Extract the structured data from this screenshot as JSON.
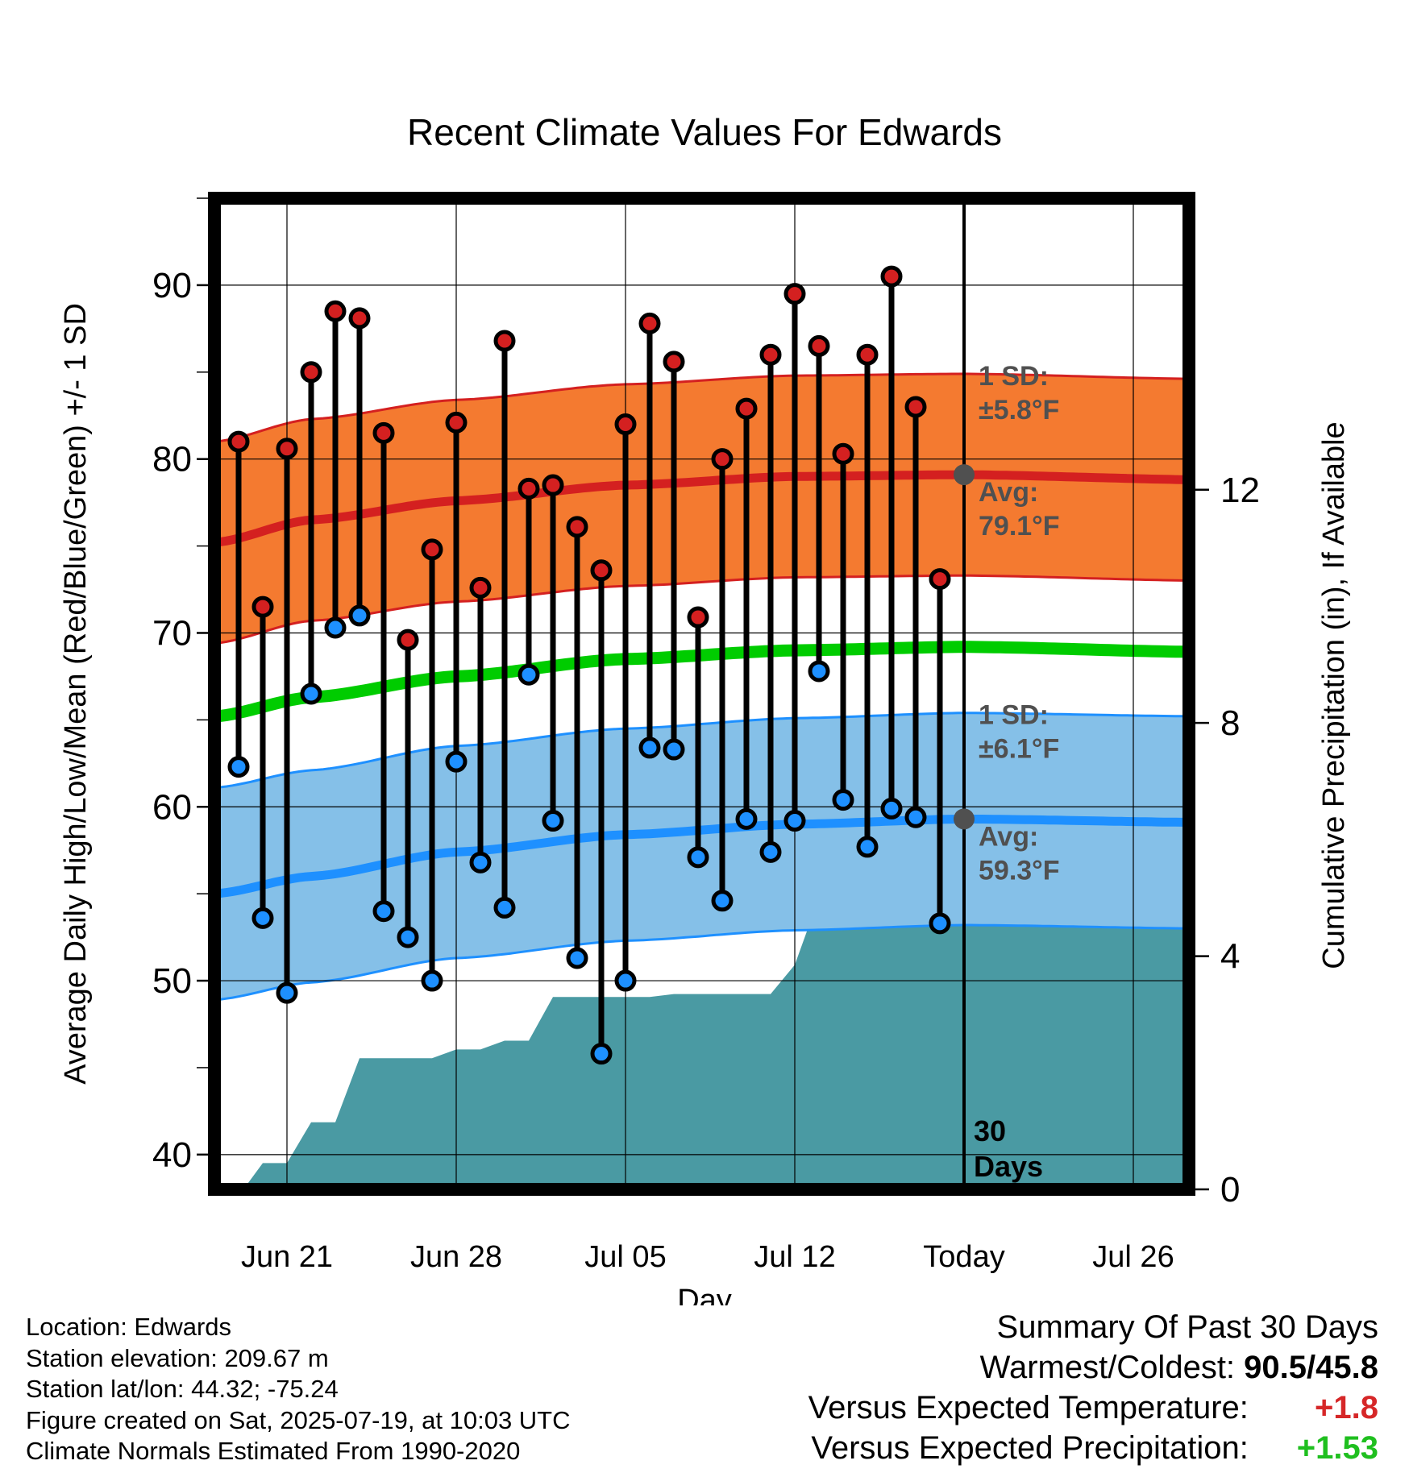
{
  "chart_data": {
    "type": "line",
    "title": "Recent Climate Values For Edwards",
    "xlabel": "Day",
    "ylabel_left": "Average Daily High/Low/Mean (Red/Blue/Green) +/- 1 SD",
    "ylabel_right": "Cumulative Precipitation (in), If Available",
    "ylim_left": [
      38,
      95
    ],
    "ylim_right": [
      0,
      17
    ],
    "yticks_left": [
      40,
      50,
      60,
      70,
      80,
      90
    ],
    "yticks_right": [
      0,
      4,
      8,
      12
    ],
    "x_range_days": [
      0,
      41.1
    ],
    "x_ticks": [
      {
        "day": 3,
        "label": "Jun 21"
      },
      {
        "day": 10,
        "label": "Jun 28"
      },
      {
        "day": 17,
        "label": "Jul 05"
      },
      {
        "day": 24,
        "label": "Jul 12"
      },
      {
        "day": 31,
        "label": "Today"
      },
      {
        "day": 38,
        "label": "Jul 26"
      }
    ],
    "today_day": 31,
    "today_label": "30 Days",
    "daily_high": [
      81.0,
      71.5,
      80.6,
      85.0,
      88.5,
      88.1,
      81.5,
      69.6,
      74.8,
      82.1,
      72.6,
      86.8,
      78.3,
      78.5,
      76.1,
      73.6,
      82.0,
      87.8,
      85.6,
      70.9,
      80.0,
      82.9,
      86.0,
      89.5,
      86.5,
      80.3,
      86.0,
      90.5,
      83.0,
      73.1
    ],
    "daily_low": [
      62.3,
      53.6,
      49.3,
      66.5,
      70.3,
      71.0,
      54.0,
      52.5,
      50.0,
      62.6,
      56.8,
      54.2,
      67.6,
      59.2,
      51.3,
      45.8,
      50.0,
      63.4,
      63.3,
      57.1,
      54.6,
      59.3,
      57.4,
      59.2,
      67.8,
      60.4,
      57.7,
      59.9,
      59.4,
      53.3
    ],
    "normal_high": {
      "mean": [
        {
          "day": 0,
          "value": 75.2
        },
        {
          "day": 4,
          "value": 76.5
        },
        {
          "day": 10,
          "value": 77.6
        },
        {
          "day": 17,
          "value": 78.5
        },
        {
          "day": 24,
          "value": 79.0
        },
        {
          "day": 31,
          "value": 79.1
        },
        {
          "day": 41.1,
          "value": 78.8
        }
      ],
      "sd": 5.8,
      "label_sd": "1 SD:",
      "label_sd_value": "±5.8°F",
      "label_avg": "Avg:",
      "label_avg_value": "79.1°F"
    },
    "normal_low": {
      "mean": [
        {
          "day": 0,
          "value": 55.0
        },
        {
          "day": 4,
          "value": 56.0
        },
        {
          "day": 10,
          "value": 57.4
        },
        {
          "day": 17,
          "value": 58.4
        },
        {
          "day": 24,
          "value": 59.0
        },
        {
          "day": 31,
          "value": 59.3
        },
        {
          "day": 41.1,
          "value": 59.1
        }
      ],
      "sd": 6.1,
      "label_sd": "1 SD:",
      "label_sd_value": "±6.1°F",
      "label_avg": "Avg:",
      "label_avg_value": "59.3°F"
    },
    "normal_mean": [
      {
        "day": 0,
        "value": 65.2
      },
      {
        "day": 4,
        "value": 66.3
      },
      {
        "day": 10,
        "value": 67.5
      },
      {
        "day": 17,
        "value": 68.5
      },
      {
        "day": 24,
        "value": 69.0
      },
      {
        "day": 31,
        "value": 69.2
      },
      {
        "day": 41.1,
        "value": 68.9
      }
    ],
    "cumulative_precip": [
      {
        "day": 1.2,
        "value": 0.0
      },
      {
        "day": 2,
        "value": 0.45
      },
      {
        "day": 3,
        "value": 0.45
      },
      {
        "day": 4,
        "value": 1.15
      },
      {
        "day": 5,
        "value": 1.15
      },
      {
        "day": 6,
        "value": 2.25
      },
      {
        "day": 9,
        "value": 2.25
      },
      {
        "day": 10,
        "value": 2.4
      },
      {
        "day": 11,
        "value": 2.4
      },
      {
        "day": 12,
        "value": 2.55
      },
      {
        "day": 13,
        "value": 2.55
      },
      {
        "day": 14,
        "value": 3.3
      },
      {
        "day": 15,
        "value": 3.3
      },
      {
        "day": 17,
        "value": 3.3
      },
      {
        "day": 18,
        "value": 3.3
      },
      {
        "day": 19,
        "value": 3.35
      },
      {
        "day": 23,
        "value": 3.35
      },
      {
        "day": 24,
        "value": 3.85
      },
      {
        "day": 25,
        "value": 5.0
      },
      {
        "day": 28,
        "value": 5.0
      },
      {
        "day": 29,
        "value": 5.45
      },
      {
        "day": 41.1,
        "value": 5.45
      }
    ],
    "colors": {
      "high_band": "#f47a30",
      "high_line": "#d42020",
      "low_band": "#85c0e8",
      "low_line": "#1e90ff",
      "mean_line": "#00cc00",
      "precip": "#4a9aa3",
      "high_dot": "#d42020",
      "low_dot": "#1e90ff",
      "avg_marker": "#505050"
    }
  },
  "info": {
    "location": "Location: Edwards",
    "elevation": "Station elevation: 209.67 m",
    "latlon": "Station lat/lon: 44.32; -75.24",
    "created": "Figure created on Sat, 2025-07-19, at 10:03 UTC",
    "normals": "Climate Normals Estimated From 1990-2020"
  },
  "summary": {
    "title": "Summary Of Past 30 Days",
    "warmest_label": "Warmest/Coldest:",
    "warmest_value": "90.5/45.8",
    "temp_label": "Versus Expected Temperature:",
    "temp_value": "+1.8",
    "precip_label": "Versus Expected Precipitation:",
    "precip_value": "+1.53"
  }
}
